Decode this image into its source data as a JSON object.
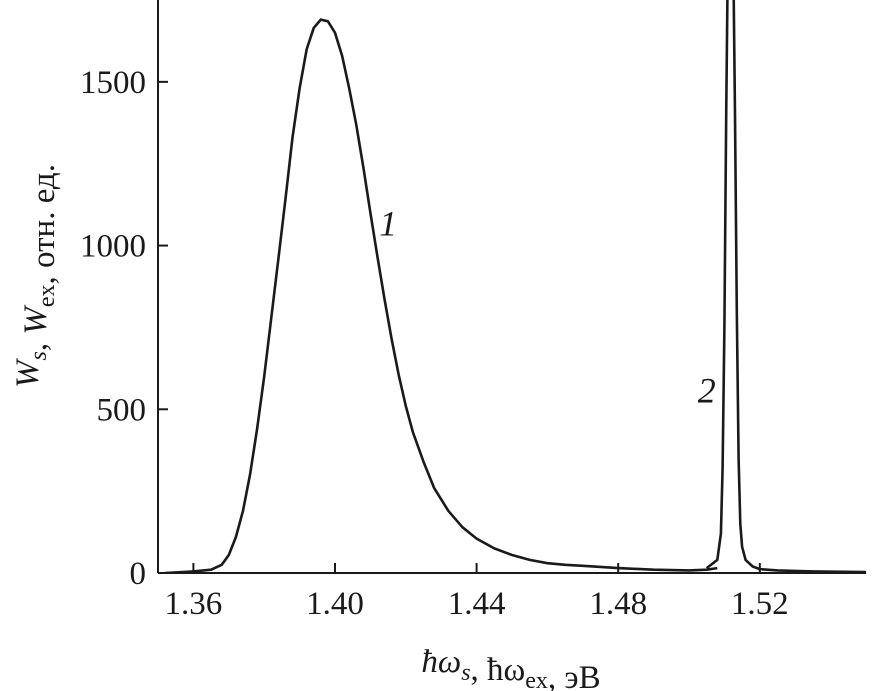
{
  "chart_data": {
    "type": "line",
    "xlabel": {
      "parts": [
        {
          "t": "ħω",
          "it": true
        },
        {
          "t": "s",
          "it": true,
          "sub": true
        },
        {
          "t": ", ħω",
          "it": false
        },
        {
          "t": "ex",
          "it": false,
          "sub": true
        },
        {
          "t": ", эВ",
          "it": false
        }
      ]
    },
    "ylabel": {
      "parts": [
        {
          "t": "W",
          "it": true
        },
        {
          "t": "s",
          "it": true,
          "sub": true
        },
        {
          "t": ", ",
          "it": false
        },
        {
          "t": "W",
          "it": true
        },
        {
          "t": "ex",
          "it": false,
          "sub": true
        },
        {
          "t": ", отн. ед.",
          "it": false
        }
      ]
    },
    "xlim": [
      1.35,
      1.55
    ],
    "ylim": [
      0,
      1750
    ],
    "xticks": [
      1.36,
      1.4,
      1.44,
      1.48,
      1.52
    ],
    "xtick_labels": [
      "1.36",
      "1.40",
      "1.44",
      "1.48",
      "1.52"
    ],
    "yticks": [
      0,
      500,
      1000,
      1500
    ],
    "ytick_labels": [
      "0",
      "500",
      "1000",
      "1500"
    ],
    "grid": false,
    "legend": "none",
    "series": [
      {
        "name": "1",
        "label_at": [
          1.415,
          1030
        ],
        "x": [
          1.352,
          1.36,
          1.365,
          1.368,
          1.37,
          1.372,
          1.374,
          1.376,
          1.378,
          1.38,
          1.382,
          1.384,
          1.386,
          1.388,
          1.39,
          1.392,
          1.394,
          1.396,
          1.398,
          1.4,
          1.402,
          1.404,
          1.406,
          1.408,
          1.41,
          1.412,
          1.414,
          1.416,
          1.418,
          1.42,
          1.422,
          1.425,
          1.428,
          1.432,
          1.436,
          1.44,
          1.445,
          1.45,
          1.455,
          1.46,
          1.465,
          1.47,
          1.48,
          1.49,
          1.5,
          1.505,
          1.508
        ],
        "y": [
          0,
          5,
          10,
          25,
          55,
          110,
          190,
          300,
          440,
          600,
          780,
          960,
          1140,
          1330,
          1480,
          1600,
          1665,
          1690,
          1685,
          1650,
          1580,
          1480,
          1370,
          1240,
          1100,
          965,
          835,
          715,
          605,
          510,
          430,
          340,
          260,
          190,
          140,
          105,
          75,
          55,
          40,
          30,
          25,
          22,
          15,
          10,
          8,
          10,
          15
        ]
      },
      {
        "name": "2",
        "label_at": [
          1.505,
          520
        ],
        "x": [
          1.505,
          1.508,
          1.509,
          1.5095,
          1.51,
          1.5105,
          1.511,
          1.5113,
          1.5121,
          1.5125,
          1.513,
          1.5135,
          1.514,
          1.5145,
          1.515,
          1.516,
          1.518,
          1.52,
          1.525,
          1.535,
          1.55
        ],
        "y": [
          15,
          40,
          120,
          320,
          750,
          1400,
          1900,
          2200,
          2200,
          1900,
          1400,
          800,
          350,
          150,
          80,
          40,
          20,
          12,
          8,
          5,
          3
        ]
      }
    ]
  }
}
